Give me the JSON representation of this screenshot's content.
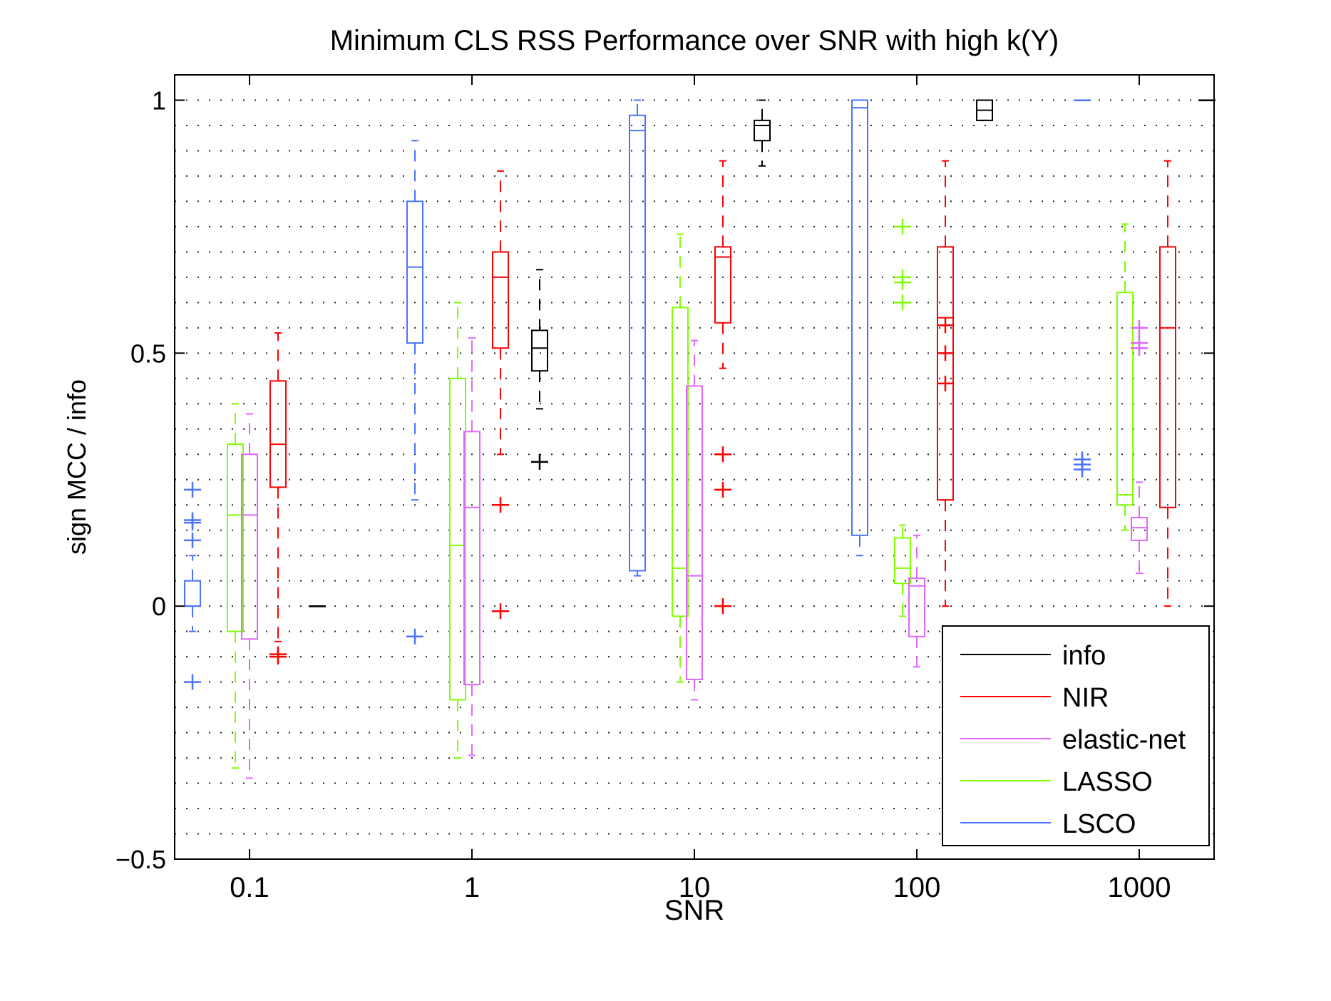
{
  "chart_data": {
    "type": "boxplot",
    "title": "Minimum CLS RSS Performance over SNR with high k(Y)",
    "xlabel": "SNR",
    "ylabel": "sign MCC / info",
    "ylim": [
      -0.5,
      1.05
    ],
    "y_ticks": [
      -0.5,
      0,
      0.5,
      1
    ],
    "y_tick_labels": [
      "−0.5",
      "0",
      "0.5",
      "1"
    ],
    "x_scale": "log",
    "x_tick_labels": [
      "0.1",
      "1",
      "10",
      "100",
      "1000"
    ],
    "grid": true,
    "legend_position": "bottom-right",
    "colors": {
      "info": "#000000",
      "NIR": "#ff0000",
      "elastic-net": "#e066ff",
      "LASSO": "#80ff00",
      "LSCO": "#4a74ff"
    },
    "legend": [
      {
        "name": "info",
        "color": "#000000"
      },
      {
        "name": "NIR",
        "color": "#ff0000"
      },
      {
        "name": "elastic-net",
        "color": "#e066ff"
      },
      {
        "name": "LASSO",
        "color": "#80ff00"
      },
      {
        "name": "LSCO",
        "color": "#4a74ff"
      }
    ],
    "groups": [
      {
        "snr": "0.1",
        "boxes": [
          {
            "series": "LSCO",
            "q1": 0,
            "median": 0,
            "q3": 0.05,
            "whisker_low": -0.05,
            "whisker_high": 0.1,
            "outliers": [
              0.23,
              0.17,
              0.165,
              0.13,
              -0.15
            ]
          },
          {
            "series": "LASSO",
            "q1": -0.05,
            "median": 0.18,
            "q3": 0.32,
            "whisker_low": -0.32,
            "whisker_high": 0.4,
            "outliers": []
          },
          {
            "series": "elastic-net",
            "q1": -0.065,
            "median": 0.18,
            "q3": 0.3,
            "whisker_low": -0.34,
            "whisker_high": 0.38,
            "outliers": []
          },
          {
            "series": "NIR",
            "q1": 0.235,
            "median": 0.32,
            "q3": 0.445,
            "whisker_low": -0.07,
            "whisker_high": 0.54,
            "outliers": [
              -0.095,
              -0.1
            ]
          },
          {
            "series": "info",
            "q1": 0,
            "median": 0,
            "q3": 0,
            "whisker_low": 0,
            "whisker_high": 0,
            "outliers": []
          }
        ]
      },
      {
        "snr": "1",
        "boxes": [
          {
            "series": "LSCO",
            "q1": 0.52,
            "median": 0.67,
            "q3": 0.8,
            "whisker_low": 0.21,
            "whisker_high": 0.92,
            "outliers": [
              -0.06
            ]
          },
          {
            "series": "LASSO",
            "q1": -0.185,
            "median": 0.12,
            "q3": 0.45,
            "whisker_low": -0.3,
            "whisker_high": 0.6,
            "outliers": []
          },
          {
            "series": "elastic-net",
            "q1": -0.155,
            "median": 0.195,
            "q3": 0.345,
            "whisker_low": -0.295,
            "whisker_high": 0.53,
            "outliers": []
          },
          {
            "series": "NIR",
            "q1": 0.51,
            "median": 0.65,
            "q3": 0.7,
            "whisker_low": 0.3,
            "whisker_high": 0.86,
            "outliers": [
              0.2,
              -0.01
            ]
          },
          {
            "series": "info",
            "q1": 0.465,
            "median": 0.51,
            "q3": 0.545,
            "whisker_low": 0.39,
            "whisker_high": 0.665,
            "outliers": [
              0.285
            ]
          }
        ]
      },
      {
        "snr": "10",
        "boxes": [
          {
            "series": "LSCO",
            "q1": 0.07,
            "median": 0.94,
            "q3": 0.97,
            "whisker_low": 0.06,
            "whisker_high": 1.0,
            "outliers": []
          },
          {
            "series": "LASSO",
            "q1": -0.02,
            "median": 0.075,
            "q3": 0.59,
            "whisker_low": -0.15,
            "whisker_high": 0.735,
            "outliers": []
          },
          {
            "series": "elastic-net",
            "q1": -0.145,
            "median": 0.06,
            "q3": 0.435,
            "whisker_low": -0.185,
            "whisker_high": 0.525,
            "outliers": []
          },
          {
            "series": "NIR",
            "q1": 0.56,
            "median": 0.69,
            "q3": 0.71,
            "whisker_low": 0.47,
            "whisker_high": 0.88,
            "outliers": [
              0.3,
              0.23,
              0.0
            ]
          },
          {
            "series": "info",
            "q1": 0.92,
            "median": 0.95,
            "q3": 0.96,
            "whisker_low": 0.87,
            "whisker_high": 1.0,
            "outliers": []
          }
        ]
      },
      {
        "snr": "100",
        "boxes": [
          {
            "series": "LSCO",
            "q1": 0.14,
            "median": 0.985,
            "q3": 1.0,
            "whisker_low": 0.1,
            "whisker_high": 1.0,
            "outliers": []
          },
          {
            "series": "LASSO",
            "q1": 0.045,
            "median": 0.075,
            "q3": 0.135,
            "whisker_low": -0.02,
            "whisker_high": 0.16,
            "outliers": [
              0.75,
              0.65,
              0.64,
              0.6
            ]
          },
          {
            "series": "elastic-net",
            "q1": -0.06,
            "median": 0.04,
            "q3": 0.055,
            "whisker_low": -0.12,
            "whisker_high": 0.14,
            "outliers": []
          },
          {
            "series": "NIR",
            "q1": 0.21,
            "median": 0.57,
            "q3": 0.71,
            "whisker_low": 0.0,
            "whisker_high": 0.88,
            "outliers": [
              0.555,
              0.5,
              0.44
            ]
          },
          {
            "series": "info",
            "q1": 0.96,
            "median": 0.98,
            "q3": 1.0,
            "whisker_low": 0.96,
            "whisker_high": 1.0,
            "outliers": []
          }
        ]
      },
      {
        "snr": "1000",
        "boxes": [
          {
            "series": "LSCO",
            "q1": 1.0,
            "median": 1.0,
            "q3": 1.0,
            "whisker_low": 1.0,
            "whisker_high": 1.0,
            "outliers": [
              0.29,
              0.28,
              0.27
            ]
          },
          {
            "series": "LASSO",
            "q1": 0.2,
            "median": 0.22,
            "q3": 0.62,
            "whisker_low": 0.15,
            "whisker_high": 0.755,
            "outliers": []
          },
          {
            "series": "elastic-net",
            "q1": 0.13,
            "median": 0.155,
            "q3": 0.175,
            "whisker_low": 0.065,
            "whisker_high": 0.245,
            "outliers": [
              0.55,
              0.52,
              0.51
            ]
          },
          {
            "series": "NIR",
            "q1": 0.195,
            "median": 0.55,
            "q3": 0.71,
            "whisker_low": 0.0,
            "whisker_high": 0.88,
            "outliers": []
          },
          {
            "series": "info",
            "q1": 1.0,
            "median": 1.0,
            "q3": 1.0,
            "whisker_low": 1.0,
            "whisker_high": 1.0,
            "outliers": []
          }
        ]
      }
    ]
  }
}
